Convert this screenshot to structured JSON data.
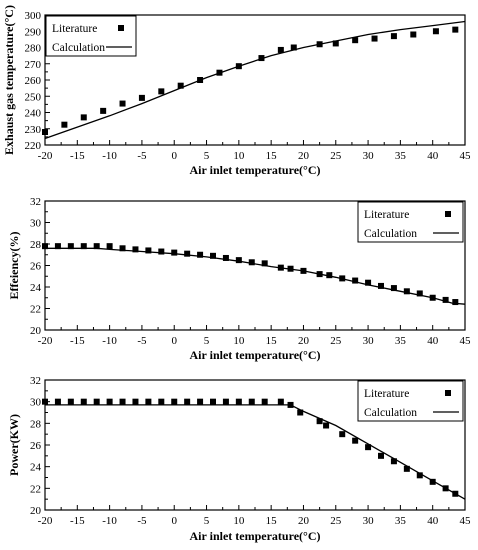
{
  "chart_data": [
    {
      "type": "line",
      "title": "",
      "xlabel": "Air inlet temperature(°C)",
      "ylabel": "Exhaust gas temperature(°C)",
      "xlim": [
        -20,
        45
      ],
      "ylim": [
        220,
        300
      ],
      "xticks": [
        -20,
        -15,
        -10,
        -5,
        0,
        5,
        10,
        15,
        20,
        25,
        30,
        35,
        40,
        45
      ],
      "yticks": [
        220,
        230,
        240,
        250,
        260,
        270,
        280,
        290,
        300
      ],
      "legend_position": "top-left",
      "series": [
        {
          "name": "Literature",
          "style": "markers",
          "x": [
            -20,
            -17,
            -14,
            -11,
            -8,
            -5,
            -2,
            1,
            4,
            7,
            10,
            13.5,
            16.5,
            18.5,
            22.5,
            25,
            28,
            31,
            34,
            37,
            40.5,
            43.5
          ],
          "y": [
            228,
            232.5,
            237,
            241,
            245.5,
            249,
            253,
            256.5,
            260,
            264.5,
            268.5,
            273.5,
            278.5,
            280,
            282,
            282.5,
            284.5,
            285.5,
            287,
            288,
            290,
            291
          ]
        },
        {
          "name": "Calculation",
          "style": "line",
          "x": [
            -20,
            -15,
            -10,
            -5,
            0,
            5,
            10,
            15,
            17,
            20,
            25,
            30,
            35,
            40,
            45
          ],
          "y": [
            224,
            231,
            238,
            245.5,
            253.5,
            261.5,
            268.5,
            275,
            277,
            280,
            284,
            288,
            291,
            293.5,
            296
          ]
        }
      ]
    },
    {
      "type": "line",
      "title": "",
      "xlabel": "Air inlet temperature(°C)",
      "ylabel": "Effeiency(%)",
      "xlim": [
        -20,
        45
      ],
      "ylim": [
        20,
        32
      ],
      "xticks": [
        -20,
        -15,
        -10,
        -5,
        0,
        5,
        10,
        15,
        20,
        25,
        30,
        35,
        40,
        45
      ],
      "yticks": [
        20,
        22,
        24,
        26,
        28,
        30,
        32
      ],
      "legend_position": "top-right",
      "series": [
        {
          "name": "Literature",
          "style": "markers",
          "x": [
            -20,
            -18,
            -16,
            -14,
            -12,
            -10,
            -8,
            -6,
            -4,
            -2,
            0,
            2,
            4,
            6,
            8,
            10,
            12,
            14,
            16.5,
            18,
            20,
            22.5,
            24,
            26,
            28,
            30,
            32,
            34,
            36,
            38,
            40,
            42,
            43.5
          ],
          "y": [
            27.8,
            27.8,
            27.8,
            27.8,
            27.8,
            27.8,
            27.6,
            27.5,
            27.4,
            27.3,
            27.2,
            27.1,
            27,
            26.9,
            26.7,
            26.5,
            26.3,
            26.2,
            25.8,
            25.7,
            25.5,
            25.2,
            25.1,
            24.8,
            24.6,
            24.4,
            24.1,
            23.9,
            23.6,
            23.4,
            23,
            22.8,
            22.6
          ]
        },
        {
          "name": "Calculation",
          "style": "line",
          "x": [
            -20,
            -15,
            -12,
            -10,
            -5,
            0,
            5,
            10,
            15,
            20,
            25,
            30,
            35,
            40,
            43,
            45
          ],
          "y": [
            27.6,
            27.6,
            27.6,
            27.5,
            27.3,
            27.1,
            26.8,
            26.4,
            25.9,
            25.5,
            24.9,
            24.2,
            23.6,
            23,
            22.5,
            22.4
          ]
        }
      ]
    },
    {
      "type": "line",
      "title": "",
      "xlabel": "Air inlet temperature(°C)",
      "ylabel": "Power(KW)",
      "xlim": [
        -20,
        45
      ],
      "ylim": [
        20,
        32
      ],
      "xticks": [
        -20,
        -15,
        -10,
        -5,
        0,
        5,
        10,
        15,
        20,
        25,
        30,
        35,
        40,
        45
      ],
      "yticks": [
        20,
        22,
        24,
        26,
        28,
        30,
        32
      ],
      "legend_position": "top-right",
      "series": [
        {
          "name": "Literature",
          "style": "markers",
          "x": [
            -20,
            -18,
            -16,
            -14,
            -12,
            -10,
            -8,
            -6,
            -4,
            -2,
            0,
            2,
            4,
            6,
            8,
            10,
            12,
            14,
            16.5,
            18,
            19.5,
            22.5,
            23.5,
            26,
            28,
            30,
            32,
            34,
            36,
            38,
            40,
            42,
            43.5
          ],
          "y": [
            30,
            30,
            30,
            30,
            30,
            30,
            30,
            30,
            30,
            30,
            30,
            30,
            30,
            30,
            30,
            30,
            30,
            30,
            30,
            29.7,
            29,
            28.2,
            27.8,
            27,
            26.4,
            25.8,
            25,
            24.5,
            23.8,
            23.2,
            22.6,
            22,
            21.5
          ]
        },
        {
          "name": "Calculation",
          "style": "line",
          "x": [
            -20,
            0,
            18,
            20,
            25,
            30,
            35,
            40,
            45
          ],
          "y": [
            29.7,
            29.7,
            29.7,
            29.1,
            27.8,
            26.1,
            24.4,
            22.7,
            21
          ]
        }
      ]
    }
  ]
}
